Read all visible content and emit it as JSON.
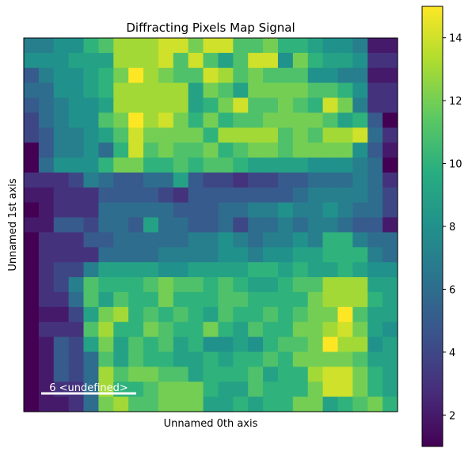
{
  "chart_data": {
    "type": "heatmap",
    "title": "Diffracting Pixels Map Signal",
    "xlabel": "Unnamed 0th axis",
    "ylabel": "Unnamed 1st axis",
    "colormap": "viridis",
    "colorbar": {
      "vmin": 1,
      "vmax": 15,
      "ticks": [
        2,
        4,
        6,
        8,
        10,
        12,
        14
      ],
      "tick_labels": [
        "2",
        "4",
        "6",
        "8",
        "10",
        "12",
        "14"
      ]
    },
    "scalebar": {
      "label": "6 <undefined>",
      "color": "#ffffff"
    },
    "rows": 25,
    "cols": 25,
    "values": [
      [
        7,
        7,
        8,
        8,
        10,
        11,
        13,
        13,
        13,
        14,
        14,
        12,
        14,
        14,
        11,
        11,
        12,
        10,
        10,
        9,
        8,
        8,
        7,
        2,
        2
      ],
      [
        8,
        8,
        8,
        9,
        9,
        9,
        13,
        13,
        13,
        14,
        11,
        14,
        11,
        9,
        11,
        14,
        14,
        8,
        12,
        10,
        9,
        9,
        8,
        3,
        3
      ],
      [
        5,
        7,
        8,
        8,
        9,
        10,
        12,
        15,
        13,
        12,
        11,
        11,
        14,
        13,
        11,
        12,
        11,
        11,
        11,
        8,
        8,
        7,
        7,
        2,
        2
      ],
      [
        6,
        6,
        8,
        8,
        9,
        10,
        13,
        13,
        13,
        13,
        13,
        9,
        12,
        11,
        9,
        12,
        12,
        12,
        12,
        11,
        11,
        10,
        8,
        3,
        3
      ],
      [
        5,
        6,
        7,
        8,
        8,
        9,
        13,
        13,
        13,
        13,
        13,
        9,
        10,
        12,
        14,
        11,
        11,
        12,
        11,
        10,
        14,
        12,
        7,
        3,
        3
      ],
      [
        4,
        6,
        7,
        8,
        8,
        11,
        12,
        15,
        13,
        14,
        12,
        10,
        12,
        10,
        11,
        11,
        12,
        12,
        12,
        12,
        11,
        9,
        10,
        5,
        1
      ],
      [
        4,
        5,
        7,
        7,
        8,
        9,
        11,
        14,
        12,
        12,
        12,
        12,
        10,
        13,
        13,
        13,
        13,
        11,
        12,
        11,
        13,
        13,
        14,
        6,
        3
      ],
      [
        1,
        5,
        7,
        7,
        8,
        6,
        10,
        14,
        11,
        12,
        11,
        11,
        12,
        10,
        11,
        12,
        12,
        11,
        12,
        12,
        12,
        12,
        8,
        5,
        2
      ],
      [
        1,
        6,
        8,
        8,
        8,
        10,
        12,
        12,
        10,
        10,
        11,
        10,
        11,
        11,
        10,
        9,
        9,
        9,
        9,
        8,
        8,
        8,
        7,
        6,
        1
      ],
      [
        3,
        3,
        3,
        4,
        7,
        6,
        5,
        5,
        6,
        6,
        9,
        5,
        4,
        4,
        3,
        4,
        4,
        5,
        5,
        6,
        6,
        6,
        7,
        6,
        3
      ],
      [
        2,
        2,
        3,
        3,
        3,
        5,
        5,
        5,
        5,
        4,
        3,
        5,
        5,
        5,
        5,
        5,
        5,
        5,
        6,
        7,
        7,
        7,
        7,
        6,
        4
      ],
      [
        1,
        2,
        3,
        3,
        3,
        6,
        6,
        6,
        6,
        6,
        5,
        5,
        5,
        6,
        6,
        7,
        7,
        8,
        7,
        7,
        8,
        7,
        6,
        6,
        4
      ],
      [
        2,
        2,
        5,
        5,
        4,
        6,
        6,
        5,
        9,
        6,
        6,
        5,
        5,
        6,
        4,
        6,
        6,
        7,
        6,
        7,
        7,
        6,
        5,
        5,
        2
      ],
      [
        1,
        3,
        3,
        3,
        5,
        5,
        6,
        6,
        6,
        6,
        6,
        7,
        7,
        8,
        7,
        6,
        7,
        7,
        8,
        7,
        10,
        10,
        7,
        6,
        6
      ],
      [
        1,
        3,
        3,
        3,
        3,
        6,
        6,
        6,
        6,
        7,
        7,
        7,
        7,
        8,
        8,
        7,
        8,
        8,
        9,
        9,
        10,
        10,
        10,
        7,
        6
      ],
      [
        1,
        3,
        4,
        4,
        7,
        9,
        9,
        9,
        9,
        8,
        8,
        9,
        9,
        9,
        9,
        10,
        10,
        9,
        10,
        9,
        9,
        10,
        9,
        8,
        8
      ],
      [
        1,
        3,
        4,
        7,
        11,
        10,
        10,
        10,
        11,
        12,
        11,
        11,
        10,
        11,
        10,
        9,
        9,
        10,
        11,
        11,
        13,
        13,
        13,
        9,
        9
      ],
      [
        1,
        3,
        3,
        6,
        11,
        9,
        11,
        10,
        10,
        12,
        10,
        10,
        10,
        11,
        11,
        10,
        10,
        10,
        10,
        12,
        13,
        13,
        13,
        10,
        9
      ],
      [
        1,
        2,
        2,
        4,
        9,
        12,
        13,
        10,
        11,
        10,
        11,
        10,
        9,
        11,
        10,
        10,
        11,
        10,
        11,
        12,
        12,
        15,
        11,
        9,
        9
      ],
      [
        1,
        3,
        3,
        3,
        11,
        13,
        10,
        10,
        12,
        11,
        10,
        10,
        12,
        10,
        9,
        11,
        10,
        10,
        12,
        12,
        13,
        14,
        12,
        9,
        8
      ],
      [
        1,
        2,
        5,
        4,
        9,
        12,
        9,
        11,
        10,
        11,
        9,
        10,
        8,
        8,
        9,
        8,
        10,
        11,
        11,
        12,
        15,
        13,
        13,
        8,
        9
      ],
      [
        1,
        2,
        5,
        4,
        6,
        11,
        9,
        11,
        10,
        10,
        9,
        9,
        10,
        9,
        10,
        10,
        11,
        10,
        12,
        12,
        12,
        12,
        11,
        9,
        9
      ],
      [
        1,
        2,
        5,
        4,
        6,
        13,
        11,
        12,
        12,
        11,
        11,
        9,
        10,
        10,
        10,
        11,
        9,
        10,
        10,
        13,
        14,
        14,
        12,
        10,
        9
      ],
      [
        1,
        2,
        3,
        3,
        6,
        13,
        10,
        10,
        11,
        12,
        12,
        12,
        10,
        9,
        9,
        11,
        10,
        10,
        10,
        12,
        14,
        14,
        12,
        10,
        9
      ],
      [
        1,
        2,
        2,
        3,
        6,
        12,
        13,
        11,
        11,
        12,
        12,
        12,
        9,
        9,
        10,
        9,
        10,
        10,
        12,
        12,
        9,
        10,
        11,
        12,
        10
      ]
    ]
  }
}
